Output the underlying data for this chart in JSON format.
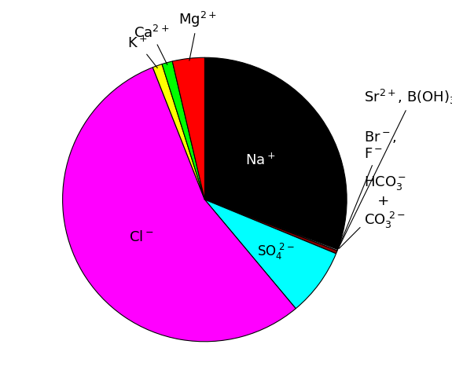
{
  "sizes": [
    30.6,
    0.08,
    0.15,
    0.35,
    7.7,
    55.05,
    1.1,
    1.2,
    3.65
  ],
  "colors": [
    "#000000",
    "#808080",
    "#c0c0c0",
    "#8B0000",
    "#00FFFF",
    "#FF00FF",
    "#FFFF00",
    "#00FF00",
    "#FF0000"
  ],
  "startangle": 90,
  "background_color": "#ffffff",
  "figsize": [
    5.75,
    4.99
  ],
  "dpi": 100,
  "inner_na_r": 0.48,
  "inner_cl_r": 0.52,
  "inner_so4_r": 0.62,
  "label_fontsize": 13
}
